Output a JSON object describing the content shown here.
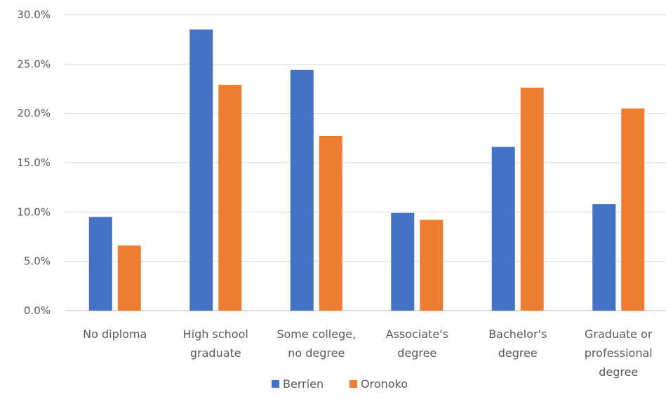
{
  "chart_data": {
    "type": "bar",
    "categories": [
      [
        "No diploma"
      ],
      [
        "High school",
        "graduate"
      ],
      [
        "Some college,",
        "no degree"
      ],
      [
        "Associate's",
        "degree"
      ],
      [
        "Bachelor's",
        "degree"
      ],
      [
        "Graduate or",
        "professional",
        "degree"
      ]
    ],
    "series": [
      {
        "name": "Berrien",
        "color": "#4472C4",
        "values": [
          9.5,
          28.5,
          24.4,
          9.9,
          16.6,
          10.8
        ]
      },
      {
        "name": "Oronoko",
        "color": "#ED7D31",
        "values": [
          6.6,
          22.9,
          17.7,
          9.2,
          22.6,
          20.5
        ]
      }
    ],
    "ylim": [
      0,
      30
    ],
    "yticks": [
      0,
      5,
      10,
      15,
      20,
      25,
      30
    ],
    "ytick_labels": [
      "0.0%",
      "5.0%",
      "10.0%",
      "15.0%",
      "20.0%",
      "25.0%",
      "30.0%"
    ],
    "grid": true,
    "legend_position": "bottom"
  }
}
